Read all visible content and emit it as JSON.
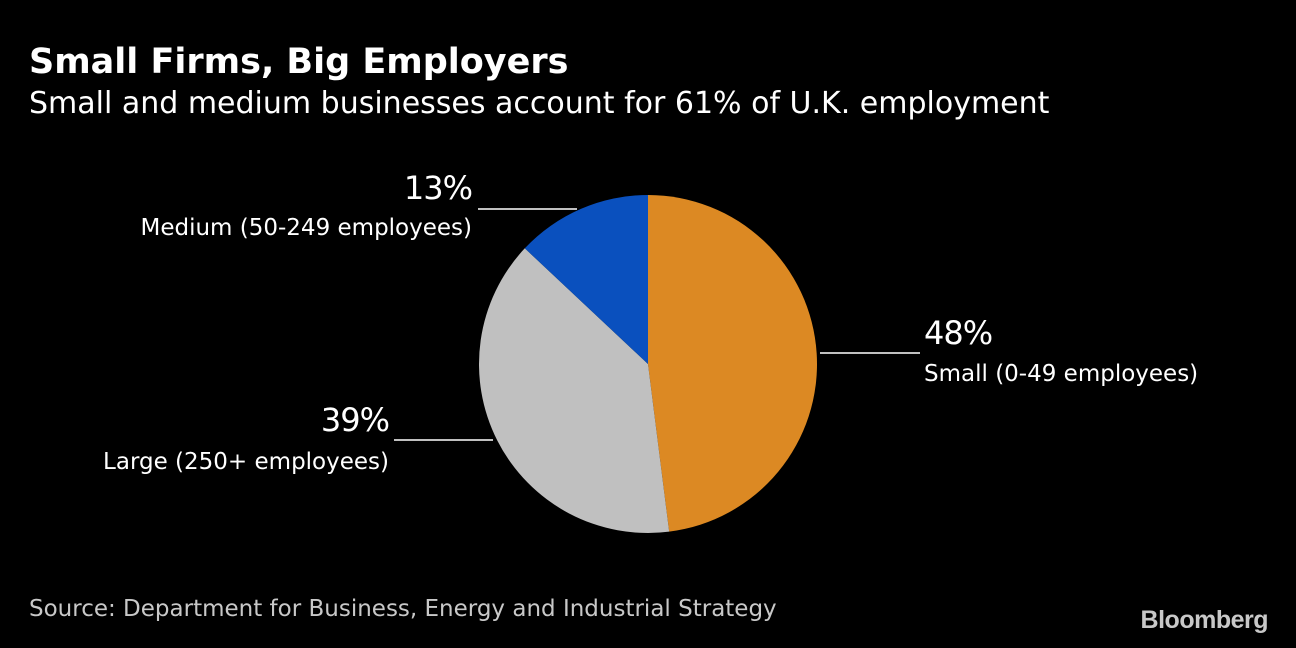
{
  "header": {
    "title": "Small Firms, Big Employers",
    "subtitle": "Small and medium businesses account for 61% of U.K. employment"
  },
  "footer": {
    "source": "Source: Department for Business, Energy and Industrial Strategy",
    "brand": "Bloomberg"
  },
  "chart_data": {
    "type": "pie",
    "title": "Small Firms, Big Employers",
    "subtitle": "Small and medium businesses account for 61% of U.K. employment",
    "start_angle_deg": 0,
    "direction": "clockwise",
    "slices": [
      {
        "id": "small",
        "label": "Small (0-49 employees)",
        "value": 48,
        "value_label": "48%",
        "color": "#DC8923"
      },
      {
        "id": "large",
        "label": "Large (250+ employees)",
        "value": 39,
        "value_label": "39%",
        "color": "#C0C0C0"
      },
      {
        "id": "medium",
        "label": "Medium (50-249 employees)",
        "value": 13,
        "value_label": "13%",
        "color": "#0A50BE"
      }
    ]
  }
}
